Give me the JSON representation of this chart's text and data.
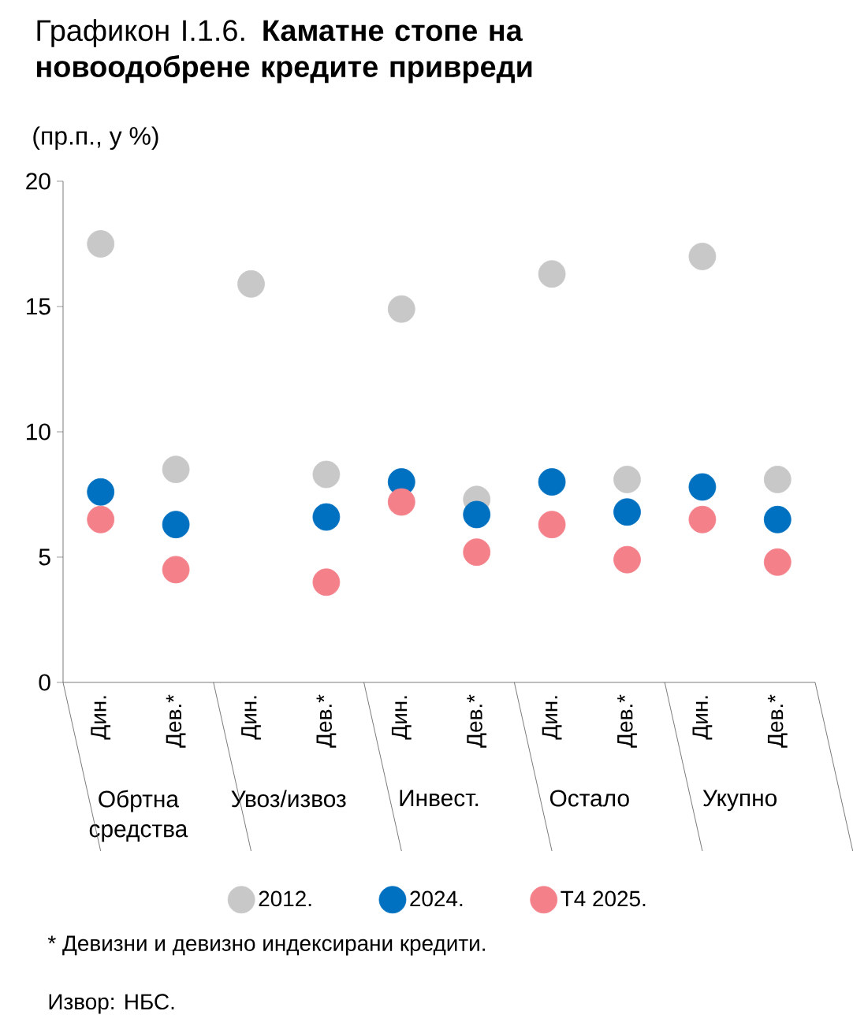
{
  "chart_data": {
    "type": "scatter",
    "title": "Графикон I.1.6. **Каматне стопе на новоодобрене кредите привреди**",
    "subtitle": "(пр.п., у %)",
    "categories": [
      "Дин.",
      "Дев.*",
      "Дин.",
      "Дев.*",
      "Дин.",
      "Дев.*",
      "Дин.",
      "Дев.*",
      "Дин.",
      "Дев.*"
    ],
    "series": [
      {
        "name": "2012.",
        "color": "#c8c8c8",
        "values": [
          17.5,
          8.5,
          15.9,
          8.3,
          14.9,
          7.3,
          16.3,
          8.1,
          17.0,
          8.1
        ]
      },
      {
        "name": "2024.",
        "color": "#0070c0",
        "values": [
          7.6,
          6.3,
          null,
          6.6,
          8.0,
          6.7,
          8.0,
          6.8,
          7.8,
          6.5
        ]
      },
      {
        "name": "Т4 2025.",
        "color": "#f4818a",
        "values": [
          6.5,
          4.5,
          null,
          4.0,
          7.2,
          5.2,
          6.3,
          4.9,
          6.5,
          4.8
        ]
      }
    ],
    "ylim": [
      0,
      20
    ],
    "yticks": [
      0,
      5,
      10,
      15,
      20
    ],
    "marker": "circle",
    "legend": "bottom",
    "grid": false,
    "annotations": [
      "Обртна средства",
      "Увоз/извоз",
      "Инвест.",
      "Остало",
      "Укупно",
      "* Девизни и девизно индексирани кредити.",
      "Извор: НБС."
    ]
  }
}
